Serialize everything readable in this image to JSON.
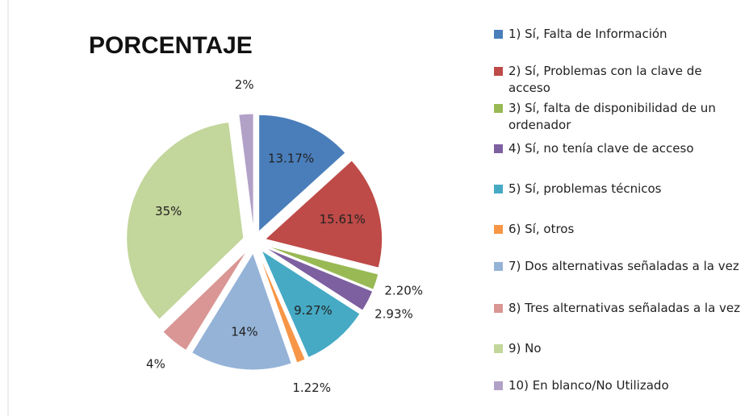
{
  "chart_data": {
    "type": "pie",
    "title": "PORCENTAJE",
    "categories": [
      "1) Sí, Falta de Información",
      "2) Sí, Problemas con la clave de acceso",
      "3) Sí, falta de disponibilidad de un ordenador",
      "4) Sí, no tenía clave de acceso",
      "5) Sí, problemas técnicos",
      "6) Sí, otros",
      "7) Dos alternativas señaladas a la vez",
      "8) Tres alternativas señaladas a la vez",
      "9) No",
      "10) En blanco/No Utilizado"
    ],
    "values": [
      13.17,
      15.61,
      2.2,
      2.93,
      9.27,
      1.22,
      14,
      4,
      35,
      2
    ],
    "value_labels": [
      "13.17%",
      "15.61%",
      "2.20%",
      "2.93%",
      "9.27%",
      "1.22%",
      "14%",
      "4%",
      "35%",
      "2%"
    ],
    "colors": [
      "#4a7ebb",
      "#be4b48",
      "#98b954",
      "#7d60a0",
      "#46aac5",
      "#f79646",
      "#95b3d7",
      "#d99694",
      "#c3d69b",
      "#b2a1c7"
    ],
    "legend": "right"
  }
}
